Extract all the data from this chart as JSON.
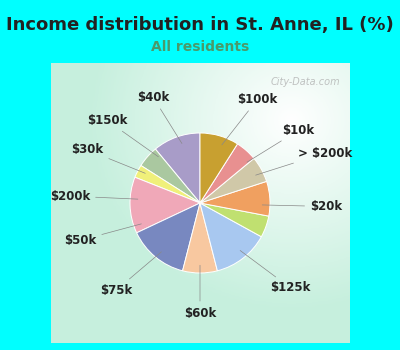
{
  "title": "Income distribution in St. Anne, IL (%)",
  "subtitle": "All residents",
  "background_outer": "#00FFFF",
  "watermark": "City-Data.com",
  "segments": [
    {
      "label": "$100k",
      "value": 11,
      "color": "#a89cc8"
    },
    {
      "label": "$10k",
      "value": 5,
      "color": "#aac8a0"
    },
    {
      "label": "> $200k",
      "value": 3,
      "color": "#f0f07a"
    },
    {
      "label": "$20k",
      "value": 13,
      "color": "#f0a8b8"
    },
    {
      "label": "$125k",
      "value": 14,
      "color": "#7888c0"
    },
    {
      "label": "$60k",
      "value": 8,
      "color": "#f8c8a0"
    },
    {
      "label": "$75k",
      "value": 13,
      "color": "#a8c8f0"
    },
    {
      "label": "$50k",
      "value": 5,
      "color": "#c0e070"
    },
    {
      "label": "$200k",
      "value": 8,
      "color": "#f0a060"
    },
    {
      "label": "$30k",
      "value": 6,
      "color": "#d0c8a8"
    },
    {
      "label": "$150k",
      "value": 5,
      "color": "#e89090"
    },
    {
      "label": "$40k",
      "value": 9,
      "color": "#c8a030"
    }
  ],
  "label_fontsize": 8.5,
  "title_fontsize": 13,
  "subtitle_fontsize": 10,
  "title_color": "#222222",
  "subtitle_color": "#4a9a6a"
}
